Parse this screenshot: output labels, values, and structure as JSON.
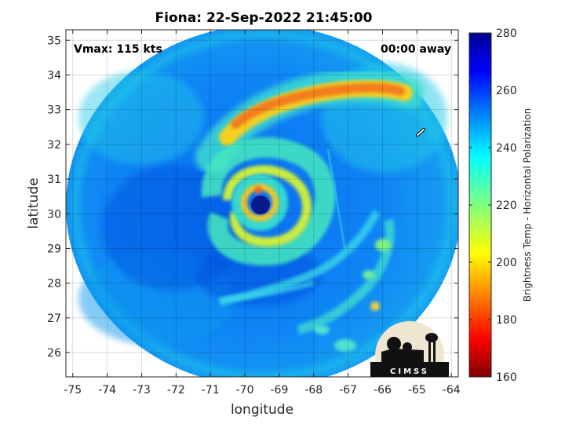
{
  "chart_data": {
    "type": "heatmap",
    "title": "Fiona: 22-Sep-2022 21:45:00",
    "xlabel": "longitude",
    "ylabel": "latitude",
    "xlim": [
      -75.2,
      -63.8
    ],
    "ylim": [
      25.3,
      35.3
    ],
    "xticks": [
      -75,
      -74,
      -73,
      -72,
      -71,
      -70,
      -69,
      -68,
      -67,
      -66,
      -65,
      -64
    ],
    "yticks": [
      26,
      27,
      28,
      29,
      30,
      31,
      32,
      33,
      34,
      35
    ],
    "grid": true,
    "colorbar": {
      "label": "Brightness Temp - Horizontal Polarization",
      "range": [
        160,
        280
      ],
      "ticks": [
        160,
        180,
        200,
        220,
        240,
        260,
        280
      ],
      "colormap": "jet"
    },
    "annotations": {
      "vmax": "Vmax: 115 kts",
      "time_away": "00:00 away"
    },
    "storm_center": {
      "lon": -69.6,
      "lat": 30.2
    },
    "swath_edge": {
      "lon_min": -75.0,
      "lon_max": -64.1,
      "lat_min": 25.4,
      "lat_max": 35.2
    },
    "features": [
      {
        "name": "eye",
        "lon": -69.6,
        "lat": 30.2,
        "tb": 270
      },
      {
        "name": "eyewall",
        "lon": -69.6,
        "lat": 30.2,
        "radius_deg": 0.8,
        "tb": 210
      },
      {
        "name": "northern rainband",
        "lon_start": -70.3,
        "lon_end": -66.0,
        "lat": 33.3,
        "tb": 190
      },
      {
        "name": "background",
        "tb": 245
      }
    ],
    "logo": "CIMSS"
  }
}
